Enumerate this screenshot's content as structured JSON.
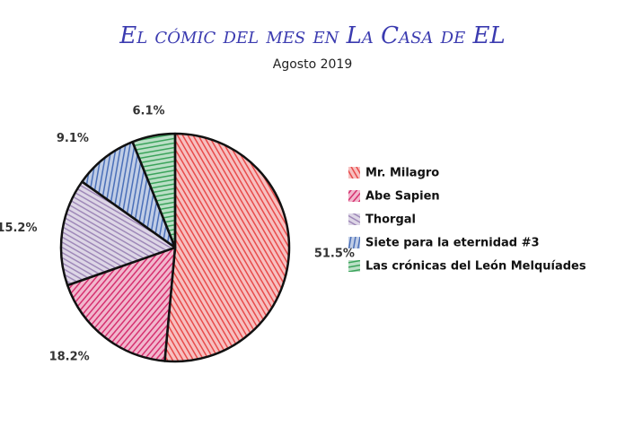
{
  "chart_data": {
    "type": "pie",
    "title": "El cómic del mes en La Casa de EL",
    "subtitle": "Agosto 2019",
    "categories": [
      "Mr. Milagro",
      "Abe Sapien",
      "Thorgal",
      "Siete para la eternidad #3",
      "Las crónicas del León Melquíades"
    ],
    "values": [
      51.5,
      18.2,
      15.2,
      9.1,
      6.1
    ],
    "value_labels": [
      "51.5%",
      "18.2%",
      "15.2%",
      "9.1%",
      "6.1%"
    ],
    "colors": [
      "#e84a4a",
      "#d6306f",
      "#9e88b8",
      "#4a6fb8",
      "#3aa35a"
    ],
    "legend": "right"
  }
}
